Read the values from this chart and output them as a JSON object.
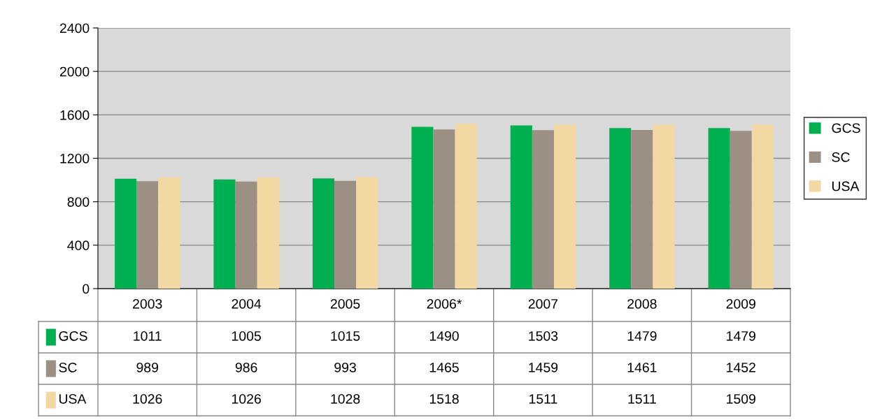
{
  "chart_data": {
    "type": "bar",
    "categories": [
      "2003",
      "2004",
      "2005",
      "2006*",
      "2007",
      "2008",
      "2009"
    ],
    "series": [
      {
        "name": "GCS",
        "color": "#00b050",
        "values": [
          1011,
          1005,
          1015,
          1490,
          1503,
          1479,
          1479
        ]
      },
      {
        "name": "SC",
        "color": "#9c8f84",
        "values": [
          989,
          986,
          993,
          1465,
          1459,
          1461,
          1452
        ]
      },
      {
        "name": "USA",
        "color": "#f2d8a2",
        "values": [
          1026,
          1026,
          1028,
          1518,
          1511,
          1511,
          1509
        ]
      }
    ],
    "ylim": [
      0,
      2400
    ],
    "yticks": [
      0,
      400,
      800,
      1200,
      1600,
      2000,
      2400
    ],
    "grid": "y",
    "legend": "right",
    "data_labels": true
  }
}
